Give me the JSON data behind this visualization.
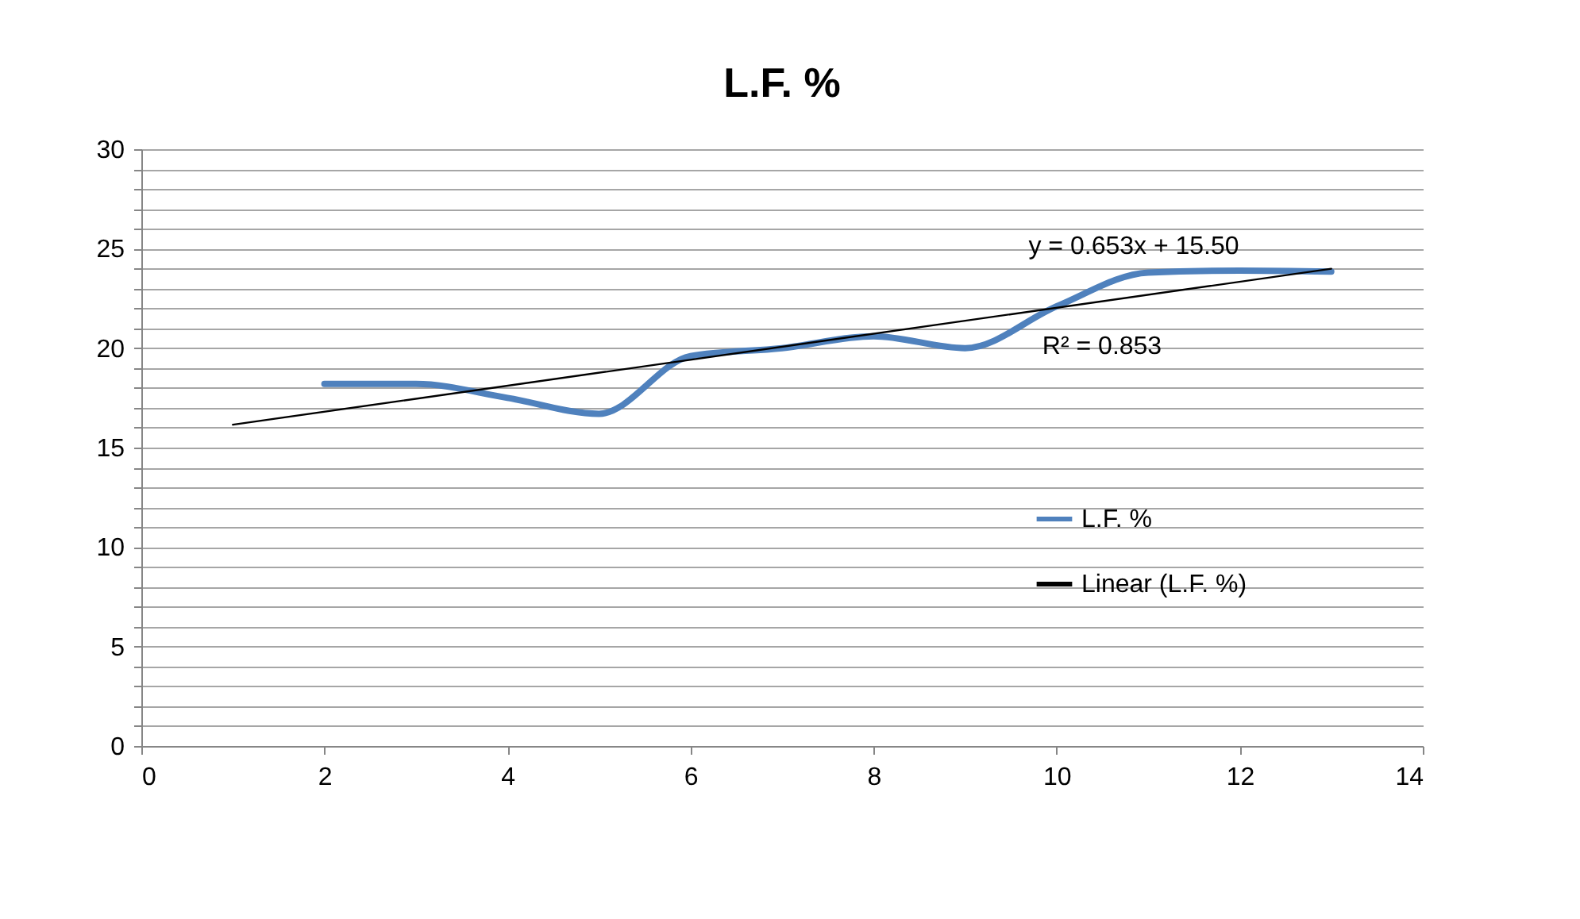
{
  "chart_data": {
    "type": "line",
    "title": "L.F. %",
    "x": [
      2,
      3,
      4,
      5,
      6,
      7,
      8,
      9,
      10,
      11,
      12,
      13
    ],
    "series": [
      {
        "name": "L.F. %",
        "color": "#4f81bd",
        "values": [
          18.2,
          18.2,
          17.5,
          16.7,
          19.6,
          20.0,
          20.6,
          20.0,
          22.1,
          23.8,
          23.9,
          23.85
        ]
      },
      {
        "name": "Linear (L.F. %)",
        "type": "line",
        "color": "#000000",
        "x": [
          1,
          13
        ],
        "values": [
          16.15,
          23.99
        ]
      }
    ],
    "xlim": [
      0,
      14
    ],
    "xticks": [
      0,
      2,
      4,
      6,
      8,
      10,
      12,
      14
    ],
    "ylim": [
      0,
      30
    ],
    "yticks": [
      0,
      {
        "value": 1,
        "label": null
      },
      {
        "value": 2,
        "label": null
      },
      {
        "value": 3,
        "label": null
      },
      {
        "value": 4,
        "label": null
      },
      5,
      {
        "value": 6,
        "label": null
      },
      {
        "value": 7,
        "label": null
      },
      {
        "value": 8,
        "label": null
      },
      {
        "value": 9,
        "label": null
      },
      10,
      {
        "value": 11,
        "label": null
      },
      {
        "value": 12,
        "label": null
      },
      {
        "value": 13,
        "label": null
      },
      {
        "value": 14,
        "label": null
      },
      15,
      {
        "value": 16,
        "label": null
      },
      {
        "value": 17,
        "label": null
      },
      {
        "value": 18,
        "label": null
      },
      {
        "value": 19,
        "label": null
      },
      20,
      {
        "value": 21,
        "label": null
      },
      {
        "value": 22,
        "label": null
      },
      {
        "value": 23,
        "label": null
      },
      {
        "value": 24,
        "label": null
      },
      25,
      {
        "value": 26,
        "label": null
      },
      {
        "value": 27,
        "label": null
      },
      {
        "value": 28,
        "label": null
      },
      {
        "value": 29,
        "label": null
      },
      30
    ],
    "grid": "y",
    "legend": "right",
    "marker": "none",
    "annotations": [
      "y = 0.653x + 15.50",
      "R² = 0.853"
    ]
  }
}
